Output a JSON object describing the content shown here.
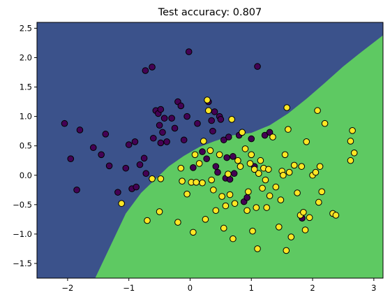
{
  "chart_data": {
    "type": "scatter",
    "title": "Test accuracy: 0.807",
    "xlabel": "",
    "ylabel": "",
    "xlim": [
      -2.5,
      3.15
    ],
    "ylim": [
      -1.75,
      2.6
    ],
    "x_ticks": [
      -2,
      -1,
      0,
      1,
      2,
      3
    ],
    "y_ticks": [
      -1.5,
      -1.0,
      -0.5,
      0.0,
      0.5,
      1.0,
      1.5,
      2.0,
      2.5
    ],
    "y_tick_labels": [
      "−1.5",
      "−1.0",
      "−0.5",
      "0.0",
      "0.5",
      "1.0",
      "1.5",
      "2.0",
      "2.5"
    ],
    "x_tick_labels": [
      "−2",
      "−1",
      "0",
      "1",
      "2",
      "3"
    ],
    "grid": false,
    "region_colors": {
      "class_0": "#3b528b",
      "class_1": "#5ec962"
    },
    "decision_boundary": [
      [
        -1.55,
        -1.75
      ],
      [
        -1.3,
        -1.2
      ],
      [
        -1.05,
        -0.65
      ],
      [
        -0.8,
        -0.3
      ],
      [
        -0.55,
        -0.05
      ],
      [
        -0.35,
        0.15
      ],
      [
        -0.1,
        0.33
      ],
      [
        0.15,
        0.48
      ],
      [
        0.4,
        0.58
      ],
      [
        0.7,
        0.68
      ],
      [
        1.0,
        0.72
      ],
      [
        1.3,
        0.85
      ],
      [
        1.6,
        1.05
      ],
      [
        1.9,
        1.3
      ],
      [
        2.2,
        1.57
      ],
      [
        2.5,
        1.85
      ],
      [
        2.8,
        2.1
      ],
      [
        3.15,
        2.38
      ]
    ],
    "series": [
      {
        "color": "#440154",
        "points": [
          [
            -2.05,
            0.88
          ],
          [
            -1.95,
            0.28
          ],
          [
            -1.85,
            -0.25
          ],
          [
            -1.8,
            0.77
          ],
          [
            -1.58,
            0.47
          ],
          [
            -1.45,
            0.35
          ],
          [
            -1.38,
            0.7
          ],
          [
            -1.32,
            0.16
          ],
          [
            -1.18,
            -0.29
          ],
          [
            -1.05,
            0.12
          ],
          [
            -1.0,
            0.52
          ],
          [
            -0.95,
            -0.23
          ],
          [
            -0.9,
            0.57
          ],
          [
            -0.88,
            -0.2
          ],
          [
            -0.82,
            0.18
          ],
          [
            -0.75,
            0.29
          ],
          [
            -0.72,
            0.03
          ],
          [
            -0.73,
            1.78
          ],
          [
            -0.62,
            1.84
          ],
          [
            -0.6,
            0.63
          ],
          [
            -0.56,
            1.1
          ],
          [
            -0.52,
            1.05
          ],
          [
            -0.5,
            0.85
          ],
          [
            -0.48,
            1.12
          ],
          [
            -0.48,
            0.55
          ],
          [
            -0.45,
            0.73
          ],
          [
            -0.42,
            0.97
          ],
          [
            -0.38,
            0.57
          ],
          [
            -0.3,
            0.97
          ],
          [
            -0.25,
            0.8
          ],
          [
            -0.2,
            1.25
          ],
          [
            -0.15,
            1.18
          ],
          [
            -0.1,
            0.6
          ],
          [
            -0.05,
            1.0
          ],
          [
            -0.02,
            2.1
          ],
          [
            0.05,
            0.13
          ],
          [
            0.12,
            0.88
          ],
          [
            0.2,
            0.4
          ],
          [
            0.27,
            0.28
          ],
          [
            0.3,
            1.25
          ],
          [
            0.35,
            0.93
          ],
          [
            0.37,
            0.75
          ],
          [
            0.4,
            1.08
          ],
          [
            0.42,
            0.15
          ],
          [
            0.45,
            0.05
          ],
          [
            0.48,
            1.0
          ],
          [
            0.5,
            0.95
          ],
          [
            0.55,
            0.6
          ],
          [
            0.58,
            -0.05
          ],
          [
            0.6,
            0.3
          ],
          [
            0.63,
            0.65
          ],
          [
            0.65,
            -0.07
          ],
          [
            0.7,
            0.32
          ],
          [
            0.72,
            0.03
          ],
          [
            0.8,
            0.68
          ],
          [
            0.85,
            0.73
          ],
          [
            0.88,
            -0.45
          ],
          [
            0.93,
            -0.38
          ],
          [
            1.0,
            0.62
          ],
          [
            1.05,
            0.15
          ],
          [
            1.1,
            1.85
          ],
          [
            1.22,
            0.68
          ],
          [
            1.3,
            0.73
          ],
          [
            1.83,
            -0.73
          ]
        ]
      },
      {
        "color": "#fde725",
        "points": [
          [
            -1.12,
            -0.48
          ],
          [
            -0.7,
            -0.77
          ],
          [
            -0.62,
            -0.06
          ],
          [
            -0.5,
            -0.62
          ],
          [
            -0.48,
            -0.06
          ],
          [
            -0.2,
            -0.8
          ],
          [
            -0.15,
            0.12
          ],
          [
            -0.13,
            -0.1
          ],
          [
            -0.05,
            -0.32
          ],
          [
            0.02,
            -0.12
          ],
          [
            0.05,
            -0.97
          ],
          [
            0.08,
            0.35
          ],
          [
            0.1,
            -0.12
          ],
          [
            0.15,
            0.2
          ],
          [
            0.2,
            -0.13
          ],
          [
            0.22,
            0.58
          ],
          [
            0.25,
            -0.75
          ],
          [
            0.28,
            1.28
          ],
          [
            0.3,
            1.1
          ],
          [
            0.33,
            0.42
          ],
          [
            0.35,
            -0.08
          ],
          [
            0.38,
            -0.25
          ],
          [
            0.42,
            -0.6
          ],
          [
            0.48,
            0.35
          ],
          [
            0.52,
            -0.36
          ],
          [
            0.55,
            -0.9
          ],
          [
            0.58,
            -0.52
          ],
          [
            0.62,
            0.02
          ],
          [
            0.65,
            -0.33
          ],
          [
            0.68,
            0.95
          ],
          [
            0.7,
            -1.08
          ],
          [
            0.73,
            -0.48
          ],
          [
            0.78,
            0.25
          ],
          [
            0.82,
            0.15
          ],
          [
            0.85,
            0.73
          ],
          [
            0.9,
            0.45
          ],
          [
            0.93,
            -0.6
          ],
          [
            0.95,
            -0.28
          ],
          [
            0.98,
            0.2
          ],
          [
            1.0,
            0.35
          ],
          [
            1.02,
            -0.95
          ],
          [
            1.05,
            0.1
          ],
          [
            1.08,
            -0.55
          ],
          [
            1.1,
            -1.25
          ],
          [
            1.12,
            0.03
          ],
          [
            1.15,
            0.25
          ],
          [
            1.18,
            -0.22
          ],
          [
            1.2,
            0.12
          ],
          [
            1.23,
            -0.08
          ],
          [
            1.25,
            -0.55
          ],
          [
            1.28,
            0.1
          ],
          [
            1.3,
            -0.35
          ],
          [
            1.35,
            0.65
          ],
          [
            1.4,
            -0.2
          ],
          [
            1.45,
            -0.88
          ],
          [
            1.48,
            -0.42
          ],
          [
            1.5,
            0.07
          ],
          [
            1.52,
            0.0
          ],
          [
            1.55,
            0.35
          ],
          [
            1.57,
            -1.28
          ],
          [
            1.58,
            1.15
          ],
          [
            1.6,
            0.78
          ],
          [
            1.62,
            0.05
          ],
          [
            1.65,
            -1.05
          ],
          [
            1.7,
            0.17
          ],
          [
            1.75,
            -0.3
          ],
          [
            1.8,
            -0.68
          ],
          [
            1.82,
            0.15
          ],
          [
            1.85,
            -0.63
          ],
          [
            1.88,
            -0.93
          ],
          [
            1.9,
            0.57
          ],
          [
            1.95,
            -0.72
          ],
          [
            2.0,
            0.0
          ],
          [
            2.05,
            0.05
          ],
          [
            2.08,
            1.1
          ],
          [
            2.1,
            -0.46
          ],
          [
            2.12,
            0.15
          ],
          [
            2.15,
            -0.28
          ],
          [
            2.2,
            0.88
          ],
          [
            2.33,
            -0.65
          ],
          [
            2.38,
            -0.68
          ],
          [
            2.62,
            0.58
          ],
          [
            2.62,
            0.25
          ],
          [
            2.65,
            0.76
          ],
          [
            2.68,
            0.38
          ]
        ]
      }
    ]
  }
}
